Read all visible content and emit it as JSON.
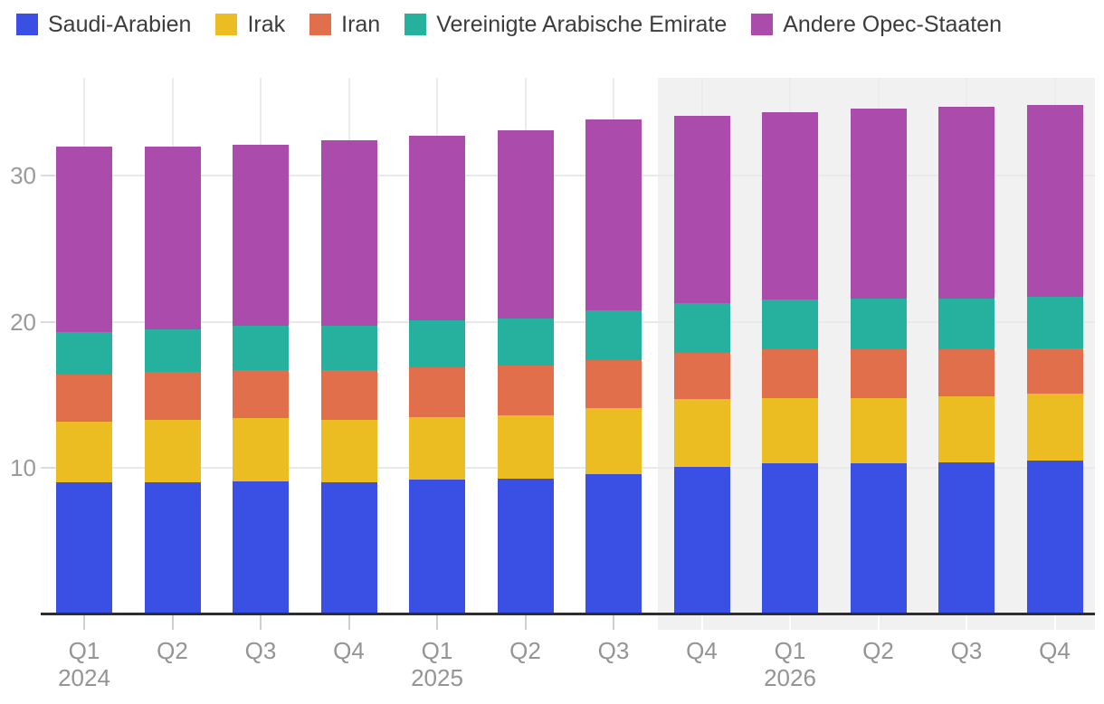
{
  "chart_data": {
    "type": "bar",
    "stacked": true,
    "title": "",
    "xlabel": "",
    "ylabel": "",
    "categories": [
      "Q1",
      "Q2",
      "Q3",
      "Q4",
      "Q1",
      "Q2",
      "Q3",
      "Q4",
      "Q1",
      "Q2",
      "Q3",
      "Q4"
    ],
    "year_labels": [
      {
        "index": 0,
        "label": "2024"
      },
      {
        "index": 4,
        "label": "2025"
      },
      {
        "index": 8,
        "label": "2026"
      }
    ],
    "series": [
      {
        "name": "Saudi-Arabien",
        "color": "#3a50e4",
        "values": [
          9.0,
          9.0,
          9.1,
          9.0,
          9.2,
          9.3,
          9.6,
          10.1,
          10.3,
          10.3,
          10.4,
          10.5
        ]
      },
      {
        "name": "Irak",
        "color": "#ecbc23",
        "values": [
          4.2,
          4.3,
          4.3,
          4.3,
          4.3,
          4.3,
          4.5,
          4.6,
          4.5,
          4.5,
          4.5,
          4.6
        ]
      },
      {
        "name": "Iran",
        "color": "#e26f4c",
        "values": [
          3.2,
          3.3,
          3.3,
          3.4,
          3.4,
          3.4,
          3.3,
          3.2,
          3.3,
          3.3,
          3.2,
          3.1
        ]
      },
      {
        "name": "Vereinigte Arabische Emirate",
        "color": "#25b19d",
        "values": [
          2.9,
          2.9,
          3.0,
          3.0,
          3.2,
          3.2,
          3.4,
          3.4,
          3.4,
          3.5,
          3.5,
          3.5
        ]
      },
      {
        "name": "Andere Opec-Staaten",
        "color": "#ab4bac",
        "values": [
          12.7,
          12.5,
          12.4,
          12.7,
          12.6,
          12.9,
          13.0,
          12.8,
          12.8,
          13.0,
          13.1,
          13.1
        ]
      }
    ],
    "totals": [
      32.0,
      32.0,
      32.1,
      32.4,
      32.7,
      33.1,
      33.8,
      34.1,
      34.3,
      34.6,
      34.7,
      34.8
    ],
    "y_ticks": [
      10,
      20,
      30
    ],
    "ylim": [
      0,
      36.7
    ],
    "grid": true,
    "legend_position": "top",
    "forecast_start_index": 7,
    "colors": {
      "forecast_band": "#f1f1f1",
      "axis_line": "#2d2d2d",
      "gridline": "#ececec",
      "tick_label": "#949494",
      "legend_text": "#3c3c3c",
      "tick_mark_normal": "#cfcfcf",
      "tick_mark_on_band": "#ffffff"
    }
  }
}
